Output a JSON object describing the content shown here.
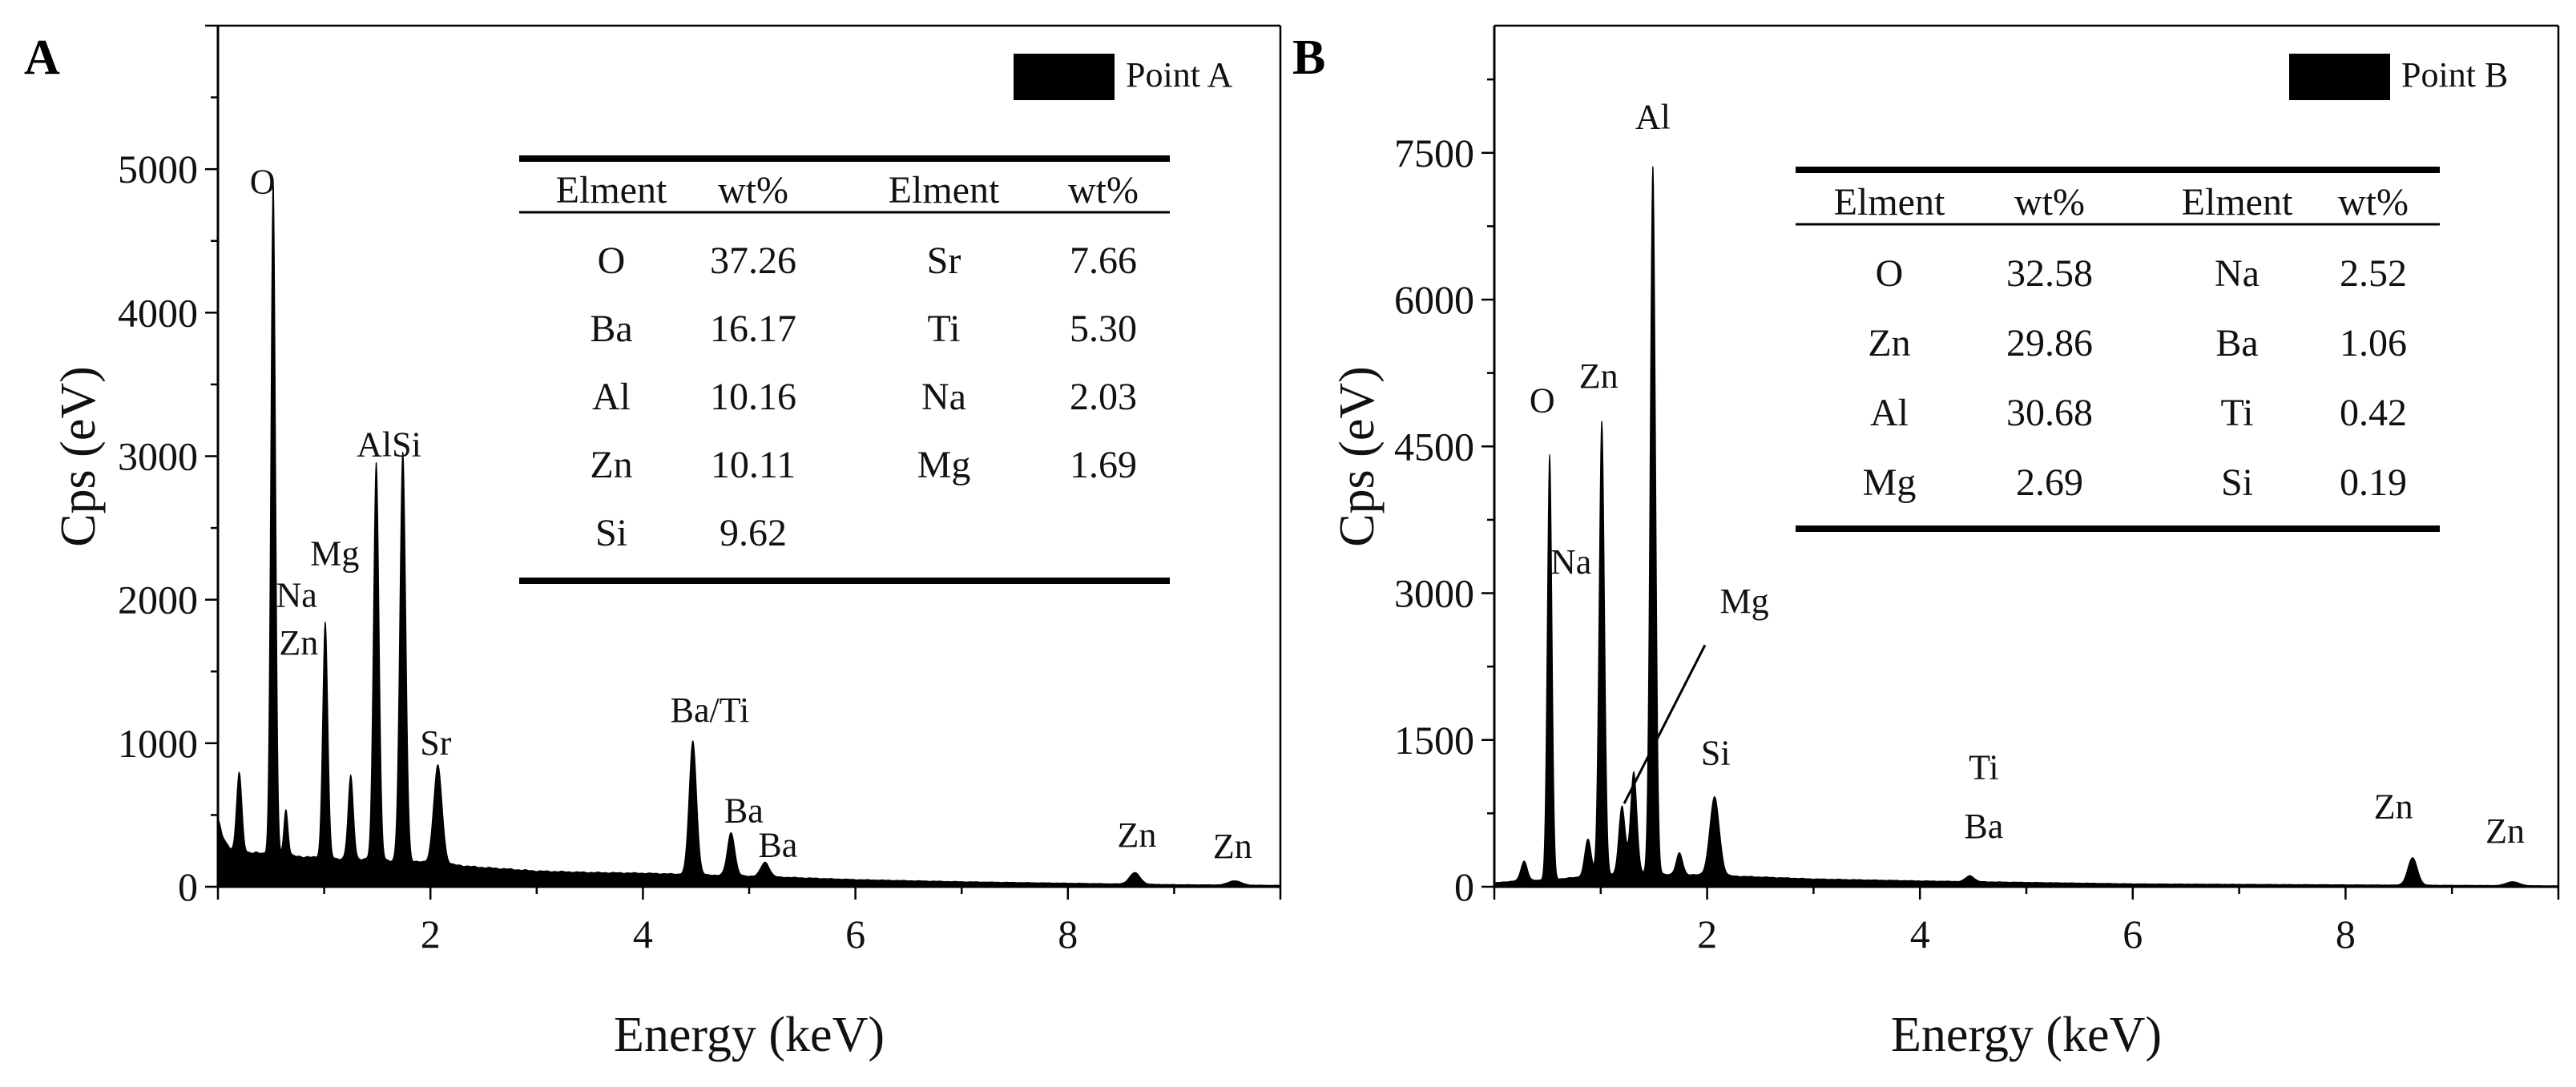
{
  "colors": {
    "foreground": "#000000",
    "background": "#ffffff"
  },
  "chart_data": [
    {
      "type": "area",
      "panel": "A",
      "legend": "Point A",
      "legend_position": "top-right",
      "xlabel": "Energy (keV)",
      "ylabel": "Cps (eV)",
      "xlim": [
        0,
        10
      ],
      "ylim": [
        0,
        6000
      ],
      "xticks": [
        2,
        4,
        6,
        8
      ],
      "yticks": [
        0,
        1000,
        2000,
        3000,
        4000,
        5000
      ],
      "baseline": [
        [
          0,
          0
        ],
        [
          0,
          480
        ],
        [
          0.04,
          360
        ],
        [
          0.08,
          300
        ],
        [
          0.15,
          250
        ],
        [
          0.3,
          240
        ],
        [
          0.6,
          220
        ],
        [
          1.0,
          200
        ],
        [
          1.4,
          190
        ],
        [
          2.0,
          170
        ],
        [
          2.4,
          140
        ],
        [
          3.0,
          110
        ],
        [
          3.5,
          100
        ],
        [
          4.0,
          95
        ],
        [
          5.0,
          75
        ],
        [
          6.0,
          50
        ],
        [
          7.0,
          35
        ],
        [
          8.0,
          25
        ],
        [
          9.0,
          15
        ],
        [
          10.0,
          10
        ],
        [
          10.0,
          0
        ]
      ],
      "peaks": [
        {
          "x": 0.2,
          "y": 550,
          "w": 0.025
        },
        {
          "x": 0.52,
          "y": 4700,
          "w": 0.022
        },
        {
          "x": 0.64,
          "y": 320,
          "w": 0.02
        },
        {
          "x": 1.01,
          "y": 1650,
          "w": 0.024
        },
        {
          "x": 1.25,
          "y": 580,
          "w": 0.025
        },
        {
          "x": 1.49,
          "y": 2780,
          "w": 0.026
        },
        {
          "x": 1.74,
          "y": 2850,
          "w": 0.028
        },
        {
          "x": 2.07,
          "y": 680,
          "w": 0.04
        },
        {
          "x": 4.47,
          "y": 930,
          "w": 0.035
        },
        {
          "x": 4.83,
          "y": 300,
          "w": 0.035
        },
        {
          "x": 5.15,
          "y": 100,
          "w": 0.04
        },
        {
          "x": 8.63,
          "y": 80,
          "w": 0.05
        },
        {
          "x": 9.57,
          "y": 30,
          "w": 0.06
        }
      ],
      "annotations": [
        {
          "label": "O",
          "x": 0.42,
          "y": 4830
        },
        {
          "label": "Mg",
          "x": 1.1,
          "y": 2240
        },
        {
          "label": "Na",
          "x": 0.74,
          "y": 1950
        },
        {
          "label": "Zn",
          "x": 0.76,
          "y": 1620
        },
        {
          "label": "AlSi",
          "x": 1.61,
          "y": 3000
        },
        {
          "label": "Sr",
          "x": 2.05,
          "y": 920
        },
        {
          "label": "Ba/Ti",
          "x": 4.63,
          "y": 1150
        },
        {
          "label": "Ba",
          "x": 4.95,
          "y": 450
        },
        {
          "label": "Ba",
          "x": 5.27,
          "y": 210
        },
        {
          "label": "Zn",
          "x": 8.65,
          "y": 280
        },
        {
          "label": "Zn",
          "x": 9.55,
          "y": 200
        }
      ],
      "table": {
        "headers": [
          "Elment",
          "wt%",
          "Elment",
          "wt%"
        ],
        "rows": [
          [
            "O",
            "37.26",
            "Sr",
            "7.66"
          ],
          [
            "Ba",
            "16.17",
            "Ti",
            "5.30"
          ],
          [
            "Al",
            "10.16",
            "Na",
            "2.03"
          ],
          [
            "Zn",
            "10.11",
            "Mg",
            "1.69"
          ],
          [
            "Si",
            "9.62",
            "",
            ""
          ]
        ]
      }
    },
    {
      "type": "area",
      "panel": "B",
      "legend": "Point B",
      "legend_position": "top-right",
      "xlabel": "Energy (keV)",
      "ylabel": "Cps (eV)",
      "xlim": [
        0,
        10
      ],
      "ylim": [
        0,
        8800
      ],
      "xticks": [
        2,
        4,
        6,
        8
      ],
      "yticks": [
        0,
        1500,
        3000,
        4500,
        6000,
        7500
      ],
      "baseline": [
        [
          0,
          0
        ],
        [
          0,
          40
        ],
        [
          0.2,
          60
        ],
        [
          0.5,
          70
        ],
        [
          1.0,
          120
        ],
        [
          1.5,
          130
        ],
        [
          2.0,
          120
        ],
        [
          2.5,
          100
        ],
        [
          3.0,
          80
        ],
        [
          4.0,
          60
        ],
        [
          5.0,
          45
        ],
        [
          6.0,
          30
        ],
        [
          7.0,
          25
        ],
        [
          8.0,
          20
        ],
        [
          9.0,
          15
        ],
        [
          10.0,
          10
        ],
        [
          10.0,
          0
        ]
      ],
      "peaks": [
        {
          "x": 0.28,
          "y": 200,
          "w": 0.03
        },
        {
          "x": 0.52,
          "y": 4350,
          "w": 0.022
        },
        {
          "x": 0.88,
          "y": 380,
          "w": 0.03
        },
        {
          "x": 1.01,
          "y": 4650,
          "w": 0.025
        },
        {
          "x": 1.2,
          "y": 700,
          "w": 0.03
        },
        {
          "x": 1.31,
          "y": 1050,
          "w": 0.03
        },
        {
          "x": 1.49,
          "y": 7250,
          "w": 0.025
        },
        {
          "x": 1.74,
          "y": 220,
          "w": 0.03
        },
        {
          "x": 2.07,
          "y": 800,
          "w": 0.045
        },
        {
          "x": 4.47,
          "y": 60,
          "w": 0.04
        },
        {
          "x": 8.63,
          "y": 280,
          "w": 0.045
        },
        {
          "x": 9.57,
          "y": 40,
          "w": 0.06
        }
      ],
      "annotations": [
        {
          "label": "Al",
          "x": 1.49,
          "y": 7750
        },
        {
          "label": "O",
          "x": 0.45,
          "y": 4850
        },
        {
          "label": "Zn",
          "x": 0.98,
          "y": 5100
        },
        {
          "label": "Na",
          "x": 0.72,
          "y": 3200
        },
        {
          "label": "Mg",
          "x": 2.35,
          "y": 2800
        },
        {
          "label": "Si",
          "x": 2.08,
          "y": 1250
        },
        {
          "label": "Ti",
          "x": 4.6,
          "y": 1100
        },
        {
          "label": "Ba",
          "x": 4.6,
          "y": 500
        },
        {
          "label": "Zn",
          "x": 8.45,
          "y": 700
        },
        {
          "label": "Zn",
          "x": 9.5,
          "y": 450
        }
      ],
      "leader_line": {
        "from": [
          1.98,
          2470
        ],
        "to": [
          1.22,
          850
        ]
      },
      "table": {
        "headers": [
          "Elment",
          "wt%",
          "Elment",
          "wt%"
        ],
        "rows": [
          [
            "O",
            "32.58",
            "Na",
            "2.52"
          ],
          [
            "Zn",
            "29.86",
            "Ba",
            "1.06"
          ],
          [
            "Al",
            "30.68",
            "Ti",
            "0.42"
          ],
          [
            "Mg",
            "2.69",
            "Si",
            "0.19"
          ]
        ]
      }
    }
  ]
}
